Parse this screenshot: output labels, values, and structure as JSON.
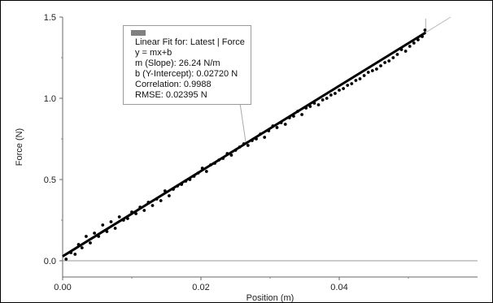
{
  "chart_data": {
    "type": "scatter",
    "title": "",
    "xlabel": "Position (m)",
    "ylabel": "Force (N)",
    "xlim": [
      0.0,
      0.06
    ],
    "ylim": [
      -0.1,
      1.5
    ],
    "x_ticks": [
      "0.00",
      "0.02",
      "0.04"
    ],
    "y_ticks": [
      "0.0",
      "0.5",
      "1.0",
      "1.5"
    ],
    "x_tick_values": [
      0.0,
      0.02,
      0.04
    ],
    "y_tick_values": [
      0.0,
      0.5,
      1.0,
      1.5
    ],
    "grid": false,
    "series": [
      {
        "x": [
          0.0005,
          0.0012,
          0.0018,
          0.0023,
          0.0028,
          0.0034,
          0.004,
          0.0046,
          0.0052,
          0.0058,
          0.0064,
          0.007,
          0.0076,
          0.0082,
          0.0088,
          0.0094,
          0.01,
          0.0106,
          0.0112,
          0.0118,
          0.0124,
          0.013,
          0.0136,
          0.0142,
          0.0148,
          0.0154,
          0.016,
          0.0166,
          0.0172,
          0.0178,
          0.0184,
          0.019,
          0.0196,
          0.0202,
          0.0208,
          0.0214,
          0.022,
          0.0226,
          0.0232,
          0.0238,
          0.0244,
          0.025,
          0.0256,
          0.0262,
          0.0268,
          0.0274,
          0.028,
          0.0286,
          0.0292,
          0.0298,
          0.0304,
          0.031,
          0.0316,
          0.0322,
          0.0328,
          0.0334,
          0.034,
          0.0346,
          0.0352,
          0.0358,
          0.0364,
          0.037,
          0.0376,
          0.0382,
          0.0388,
          0.0394,
          0.04,
          0.0406,
          0.0412,
          0.0418,
          0.0424,
          0.043,
          0.0436,
          0.0442,
          0.0448,
          0.0454,
          0.046,
          0.0466,
          0.0472,
          0.0478,
          0.0484,
          0.049,
          0.0496,
          0.0502,
          0.0508,
          0.0514,
          0.052,
          0.0524
        ],
        "y": [
          0.01,
          0.05,
          0.04,
          0.1,
          0.08,
          0.15,
          0.11,
          0.17,
          0.15,
          0.22,
          0.18,
          0.24,
          0.2,
          0.27,
          0.25,
          0.26,
          0.3,
          0.29,
          0.33,
          0.31,
          0.36,
          0.34,
          0.38,
          0.37,
          0.43,
          0.4,
          0.44,
          0.46,
          0.47,
          0.49,
          0.5,
          0.52,
          0.54,
          0.57,
          0.55,
          0.59,
          0.6,
          0.62,
          0.63,
          0.66,
          0.65,
          0.68,
          0.7,
          0.72,
          0.71,
          0.74,
          0.75,
          0.78,
          0.76,
          0.8,
          0.83,
          0.82,
          0.85,
          0.84,
          0.88,
          0.89,
          0.92,
          0.9,
          0.94,
          0.95,
          0.97,
          0.96,
          0.99,
          1.0,
          1.02,
          1.03,
          1.05,
          1.06,
          1.08,
          1.09,
          1.11,
          1.12,
          1.14,
          1.16,
          1.17,
          1.18,
          1.2,
          1.22,
          1.23,
          1.25,
          1.27,
          1.3,
          1.29,
          1.32,
          1.34,
          1.36,
          1.38,
          1.42
        ]
      }
    ],
    "fit": {
      "slope": 26.24,
      "intercept": 0.0272,
      "x_range": [
        0.0,
        0.0525
      ]
    },
    "fit_box": {
      "title": "Linear Fit for: Latest | Force",
      "equation": "y = mx+b",
      "slope_text": "m (Slope): 26.24 N/m",
      "intercept_text": "b (Y-Intercept): 0.02720 N",
      "correlation_text": "Correlation: 0.9988",
      "rmse_text": "RMSE: 0.02395 N"
    }
  }
}
